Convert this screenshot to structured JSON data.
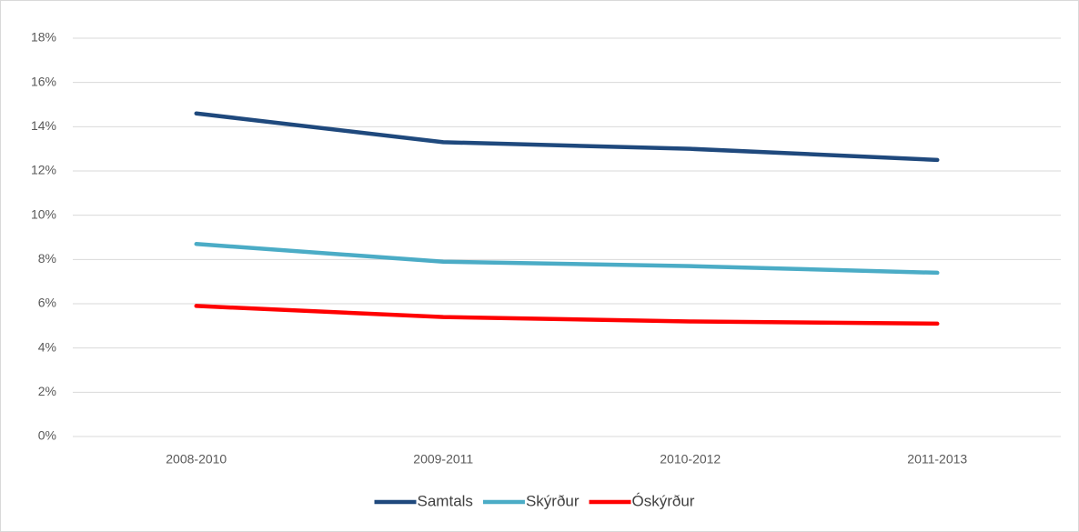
{
  "chart_data": {
    "type": "line",
    "categories": [
      "2008-2010",
      "2009-2011",
      "2010-2012",
      "2011-2013"
    ],
    "series": [
      {
        "name": "Samtals",
        "color": "#1f497d",
        "values": [
          14.6,
          13.3,
          13.0,
          12.5
        ]
      },
      {
        "name": "Skýrður",
        "color": "#4bacc6",
        "values": [
          8.7,
          7.9,
          7.7,
          7.4
        ]
      },
      {
        "name": "Óskýrður",
        "color": "#ff0000",
        "values": [
          5.9,
          5.4,
          5.2,
          5.1
        ]
      }
    ],
    "ylim": [
      0,
      18
    ],
    "yticks": [
      {
        "value": 0,
        "label": "0%"
      },
      {
        "value": 2,
        "label": "2%"
      },
      {
        "value": 4,
        "label": "4%"
      },
      {
        "value": 6,
        "label": "6%"
      },
      {
        "value": 8,
        "label": "8%"
      },
      {
        "value": 10,
        "label": "10%"
      },
      {
        "value": 12,
        "label": "12%"
      },
      {
        "value": 14,
        "label": "14%"
      },
      {
        "value": 16,
        "label": "16%"
      },
      {
        "value": 18,
        "label": "18%"
      }
    ],
    "grid": true,
    "legend": "bottom"
  }
}
